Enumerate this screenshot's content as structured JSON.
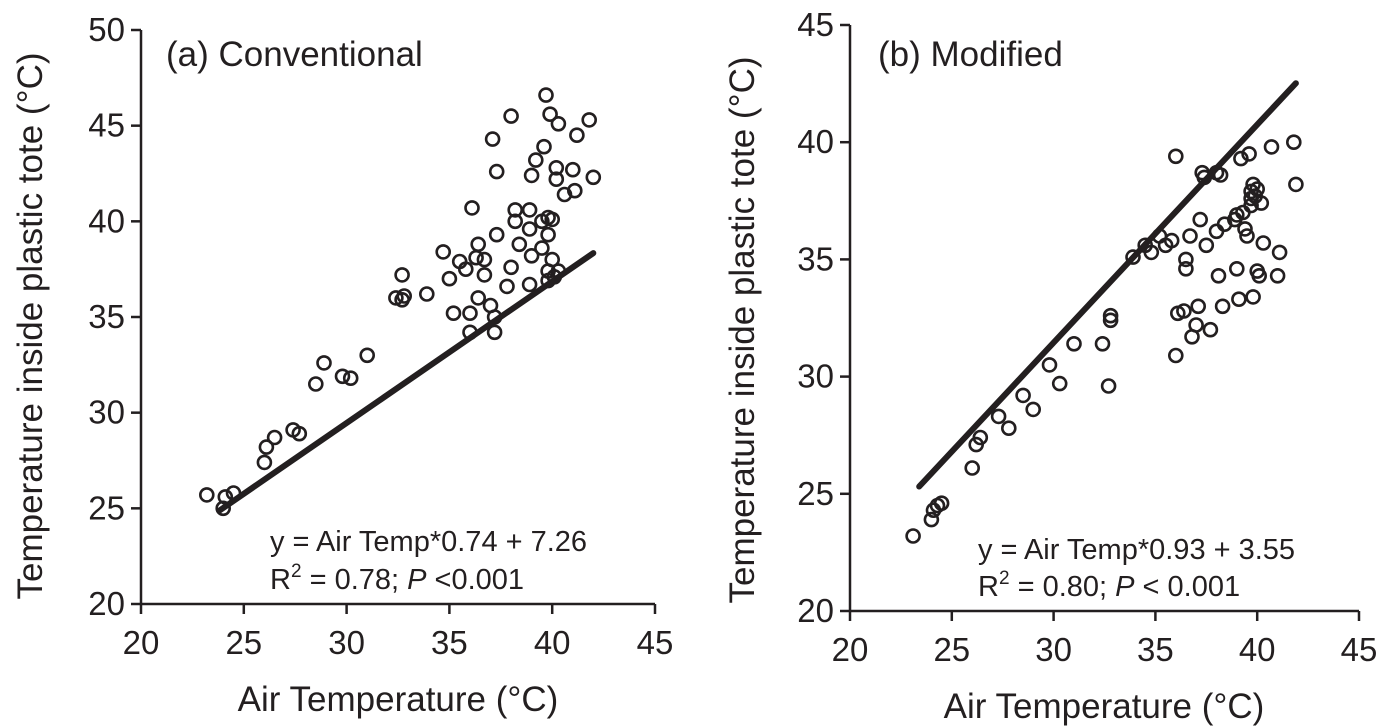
{
  "chart_data": [
    {
      "type": "scatter",
      "panel_label": "(a) Conventional",
      "xlabel": "Air Temperature (°C)",
      "ylabel": "Temperature inside plastic tote (°C)",
      "xlim": [
        20,
        45
      ],
      "ylim": [
        20,
        50
      ],
      "xticks": [
        "20",
        "25",
        "30",
        "35",
        "40",
        "45"
      ],
      "yticks": [
        "20",
        "25",
        "30",
        "35",
        "40",
        "45",
        "50"
      ],
      "equation": "y = Air Temp*0.74 + 7.26",
      "stats": {
        "r2_prefix": "R",
        "r2_sup": "2",
        "r2_value": " = 0.78; ",
        "p_label": "P",
        "p_value": " <0.001"
      },
      "trendline": {
        "slope": 0.74,
        "intercept": 7.26,
        "x_range": [
          23.8,
          42.0
        ]
      },
      "points": [
        [
          23.2,
          25.7
        ],
        [
          24.0,
          25.0
        ],
        [
          24.1,
          25.6
        ],
        [
          24.5,
          25.8
        ],
        [
          26.0,
          27.4
        ],
        [
          26.1,
          28.2
        ],
        [
          26.5,
          28.7
        ],
        [
          27.4,
          29.1
        ],
        [
          27.7,
          28.9
        ],
        [
          28.5,
          31.5
        ],
        [
          28.9,
          32.6
        ],
        [
          29.8,
          31.9
        ],
        [
          30.2,
          31.8
        ],
        [
          31.0,
          33.0
        ],
        [
          32.4,
          36.0
        ],
        [
          32.7,
          35.9
        ],
        [
          32.7,
          37.2
        ],
        [
          32.8,
          36.1
        ],
        [
          33.9,
          36.2
        ],
        [
          34.7,
          38.4
        ],
        [
          35.0,
          37.0
        ],
        [
          35.2,
          35.2
        ],
        [
          35.5,
          37.9
        ],
        [
          35.8,
          37.5
        ],
        [
          36.0,
          34.2
        ],
        [
          36.0,
          35.2
        ],
        [
          36.1,
          40.7
        ],
        [
          36.3,
          38.1
        ],
        [
          36.4,
          38.8
        ],
        [
          36.4,
          36.0
        ],
        [
          36.7,
          37.2
        ],
        [
          36.7,
          38.0
        ],
        [
          37.0,
          35.6
        ],
        [
          37.1,
          44.3
        ],
        [
          37.2,
          35.0
        ],
        [
          37.2,
          34.2
        ],
        [
          37.3,
          42.6
        ],
        [
          37.3,
          39.3
        ],
        [
          37.8,
          36.6
        ],
        [
          38.0,
          45.5
        ],
        [
          38.0,
          37.6
        ],
        [
          38.2,
          40.6
        ],
        [
          38.2,
          40.0
        ],
        [
          38.4,
          38.8
        ],
        [
          38.9,
          40.6
        ],
        [
          38.9,
          39.6
        ],
        [
          38.9,
          36.7
        ],
        [
          39.0,
          42.4
        ],
        [
          39.0,
          38.2
        ],
        [
          39.2,
          43.2
        ],
        [
          39.5,
          40.0
        ],
        [
          39.5,
          38.6
        ],
        [
          39.6,
          43.9
        ],
        [
          39.7,
          46.6
        ],
        [
          39.8,
          40.2
        ],
        [
          39.8,
          39.3
        ],
        [
          39.8,
          37.4
        ],
        [
          39.8,
          36.9
        ],
        [
          39.9,
          45.6
        ],
        [
          40.0,
          40.1
        ],
        [
          40.0,
          38.0
        ],
        [
          40.1,
          37.1
        ],
        [
          40.2,
          42.8
        ],
        [
          40.2,
          42.2
        ],
        [
          40.3,
          45.1
        ],
        [
          40.3,
          37.4
        ],
        [
          40.6,
          41.4
        ],
        [
          41.0,
          42.7
        ],
        [
          41.1,
          41.6
        ],
        [
          41.2,
          44.5
        ],
        [
          41.8,
          45.3
        ],
        [
          42.0,
          42.3
        ]
      ]
    },
    {
      "type": "scatter",
      "panel_label": "(b) Modified",
      "xlabel": "Air Temperature (°C)",
      "ylabel": "Temperature inside plastic tote (°C)",
      "xlim": [
        20,
        45
      ],
      "ylim": [
        20,
        45
      ],
      "xticks": [
        "20",
        "25",
        "30",
        "35",
        "40",
        "45"
      ],
      "yticks": [
        "20",
        "25",
        "30",
        "35",
        "40",
        "45"
      ],
      "equation": "y = Air Temp*0.93 + 3.55",
      "stats": {
        "r2_prefix": "R",
        "r2_sup": "2",
        "r2_value": " = 0.80; ",
        "p_label": "P",
        "p_value": " < 0.001"
      },
      "trendline": {
        "slope": 0.93,
        "intercept": 3.55,
        "x_range": [
          23.4,
          41.9
        ]
      },
      "points": [
        [
          23.1,
          23.2
        ],
        [
          24.0,
          23.9
        ],
        [
          24.1,
          24.3
        ],
        [
          24.3,
          24.5
        ],
        [
          24.5,
          24.6
        ],
        [
          26.0,
          26.1
        ],
        [
          26.2,
          27.1
        ],
        [
          26.4,
          27.4
        ],
        [
          27.3,
          28.3
        ],
        [
          27.8,
          27.8
        ],
        [
          28.5,
          29.2
        ],
        [
          29.0,
          28.6
        ],
        [
          29.8,
          30.5
        ],
        [
          30.3,
          29.7
        ],
        [
          31.0,
          31.4
        ],
        [
          32.4,
          31.4
        ],
        [
          32.7,
          29.6
        ],
        [
          32.8,
          32.4
        ],
        [
          32.8,
          32.6
        ],
        [
          33.9,
          35.1
        ],
        [
          34.5,
          35.6
        ],
        [
          34.8,
          35.3
        ],
        [
          35.2,
          36.0
        ],
        [
          35.5,
          35.6
        ],
        [
          35.8,
          35.8
        ],
        [
          36.0,
          39.4
        ],
        [
          36.0,
          30.9
        ],
        [
          36.1,
          32.7
        ],
        [
          36.4,
          32.8
        ],
        [
          36.5,
          35.0
        ],
        [
          36.5,
          34.6
        ],
        [
          36.7,
          36.0
        ],
        [
          36.8,
          31.7
        ],
        [
          37.0,
          32.2
        ],
        [
          37.1,
          33.0
        ],
        [
          37.2,
          36.7
        ],
        [
          37.3,
          38.7
        ],
        [
          37.4,
          38.5
        ],
        [
          37.5,
          35.6
        ],
        [
          37.7,
          32.0
        ],
        [
          38.0,
          36.2
        ],
        [
          38.0,
          38.7
        ],
        [
          38.1,
          34.3
        ],
        [
          38.2,
          38.6
        ],
        [
          38.3,
          33.0
        ],
        [
          38.4,
          36.5
        ],
        [
          38.9,
          36.7
        ],
        [
          39.0,
          36.9
        ],
        [
          39.0,
          34.6
        ],
        [
          39.1,
          33.3
        ],
        [
          39.2,
          39.3
        ],
        [
          39.3,
          37.0
        ],
        [
          39.4,
          36.3
        ],
        [
          39.5,
          36.0
        ],
        [
          39.6,
          39.5
        ],
        [
          39.7,
          37.9
        ],
        [
          39.7,
          37.6
        ],
        [
          39.7,
          37.3
        ],
        [
          39.8,
          38.2
        ],
        [
          39.8,
          33.4
        ],
        [
          39.9,
          37.7
        ],
        [
          40.0,
          38.0
        ],
        [
          40.0,
          34.5
        ],
        [
          40.1,
          34.3
        ],
        [
          40.2,
          37.4
        ],
        [
          40.3,
          35.7
        ],
        [
          40.7,
          39.8
        ],
        [
          41.0,
          34.3
        ],
        [
          41.1,
          35.3
        ],
        [
          41.8,
          40.0
        ],
        [
          41.9,
          38.2
        ]
      ]
    }
  ]
}
